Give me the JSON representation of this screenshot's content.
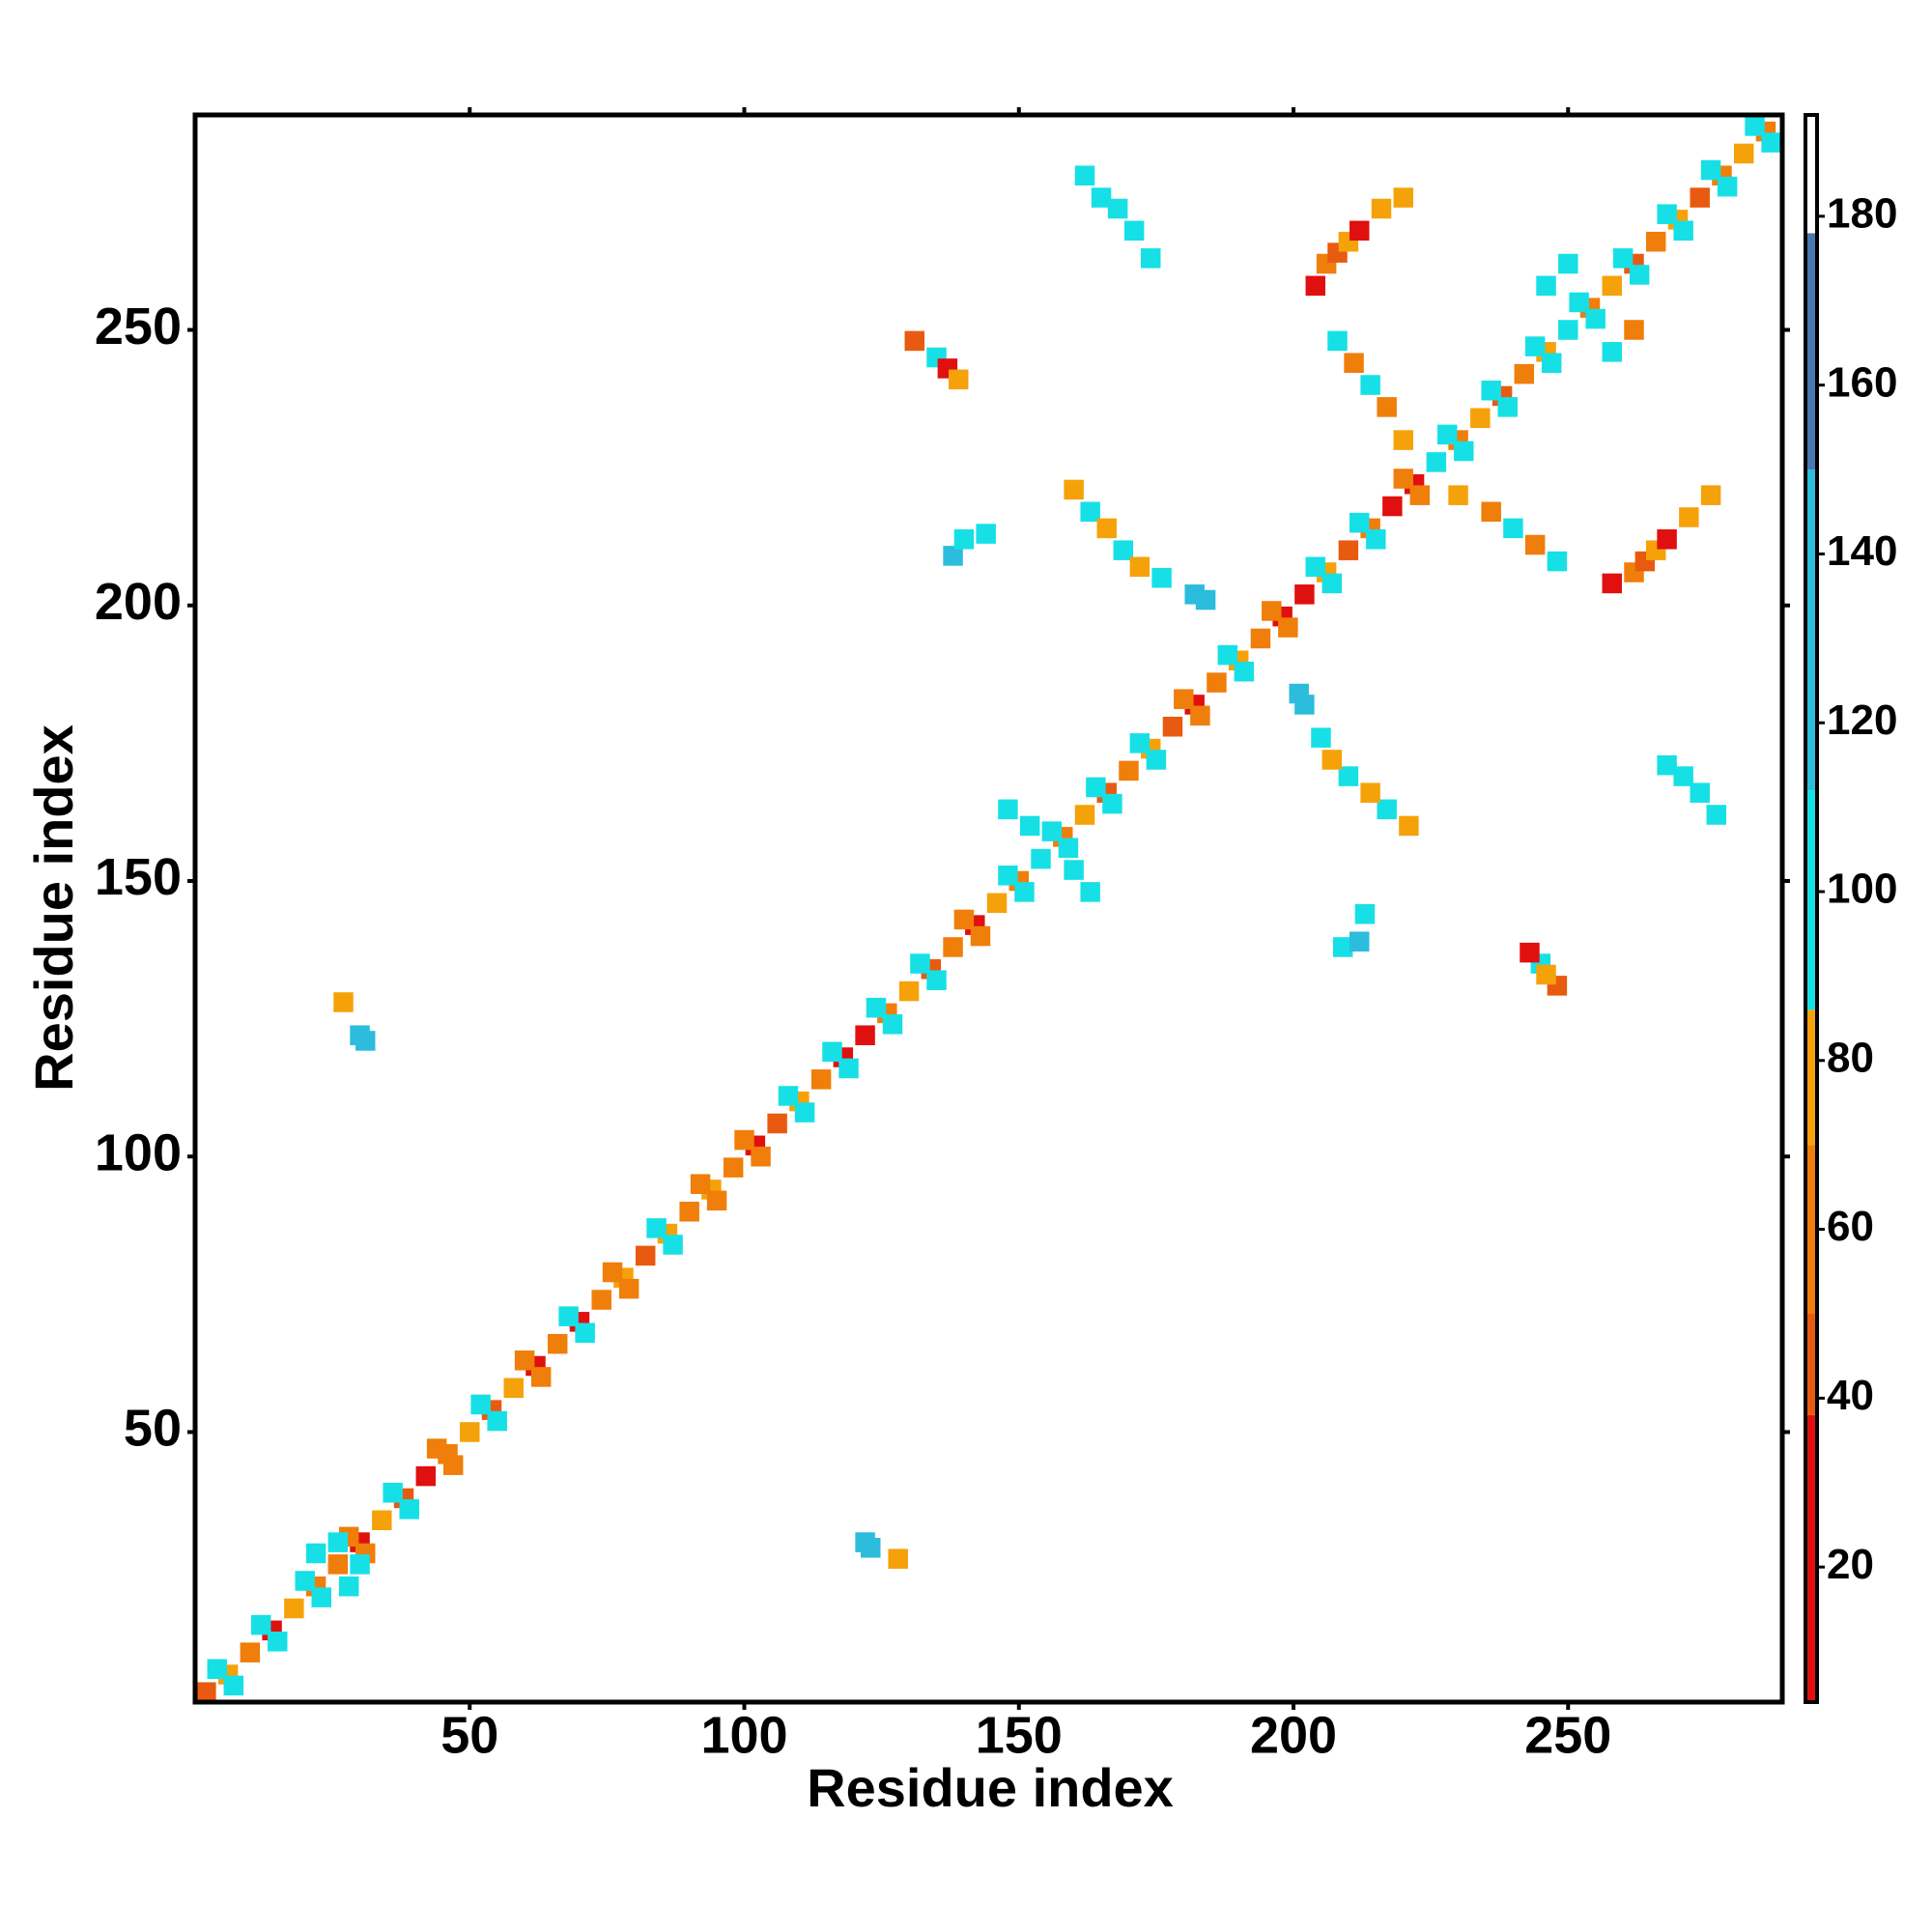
{
  "chart_data": {
    "type": "heatmap",
    "xlabel": "Residue index",
    "ylabel": "Residue index",
    "xlim": [
      0,
      289
    ],
    "ylim": [
      1,
      289
    ],
    "xticks": [
      50,
      100,
      150,
      200,
      250
    ],
    "yticks": [
      50,
      100,
      150,
      200,
      250
    ],
    "clim": [
      4,
      192
    ],
    "cticks": [
      20,
      40,
      60,
      80,
      100,
      120,
      140,
      160,
      180
    ],
    "colorscale": [
      {
        "from": 4,
        "to": 38,
        "color": "#e01010"
      },
      {
        "from": 38,
        "to": 50,
        "color": "#e85a10"
      },
      {
        "from": 50,
        "to": 70,
        "color": "#f07e0a"
      },
      {
        "from": 70,
        "to": 86,
        "color": "#f5a20a"
      },
      {
        "from": 86,
        "to": 112,
        "color": "#16e0e6"
      },
      {
        "from": 112,
        "to": 150,
        "color": "#2cbcdc"
      },
      {
        "from": 150,
        "to": 178,
        "color": "#4a78b0"
      },
      {
        "from": 178,
        "to": 192,
        "color": "#ffffff"
      }
    ],
    "cells": [
      [
        2,
        2,
        40
      ],
      [
        6,
        6,
        70
      ],
      [
        10,
        10,
        60
      ],
      [
        14,
        14,
        20
      ],
      [
        18,
        18,
        70
      ],
      [
        22,
        22,
        50
      ],
      [
        26,
        26,
        65
      ],
      [
        30,
        30,
        30
      ],
      [
        34,
        34,
        75
      ],
      [
        38,
        38,
        45
      ],
      [
        42,
        42,
        20
      ],
      [
        46,
        46,
        60
      ],
      [
        50,
        50,
        70
      ],
      [
        54,
        54,
        40
      ],
      [
        58,
        58,
        75
      ],
      [
        62,
        62,
        30
      ],
      [
        66,
        66,
        65
      ],
      [
        70,
        70,
        20
      ],
      [
        74,
        74,
        55
      ],
      [
        78,
        78,
        75
      ],
      [
        82,
        82,
        45
      ],
      [
        86,
        86,
        70
      ],
      [
        90,
        90,
        60
      ],
      [
        94,
        94,
        75
      ],
      [
        98,
        98,
        50
      ],
      [
        102,
        102,
        20
      ],
      [
        106,
        106,
        45
      ],
      [
        110,
        110,
        70
      ],
      [
        114,
        114,
        60
      ],
      [
        118,
        118,
        20
      ],
      [
        122,
        122,
        30
      ],
      [
        126,
        126,
        65
      ],
      [
        130,
        130,
        75
      ],
      [
        134,
        134,
        45
      ],
      [
        138,
        138,
        60
      ],
      [
        142,
        142,
        30
      ],
      [
        146,
        146,
        70
      ],
      [
        150,
        150,
        50
      ],
      [
        154,
        154,
        110
      ],
      [
        158,
        158,
        65
      ],
      [
        162,
        162,
        75
      ],
      [
        166,
        166,
        45
      ],
      [
        170,
        170,
        60
      ],
      [
        174,
        174,
        70
      ],
      [
        178,
        178,
        40
      ],
      [
        182,
        182,
        20
      ],
      [
        186,
        186,
        55
      ],
      [
        190,
        190,
        75
      ],
      [
        194,
        194,
        60
      ],
      [
        198,
        198,
        30
      ],
      [
        202,
        202,
        20
      ],
      [
        206,
        206,
        70
      ],
      [
        210,
        210,
        45
      ],
      [
        214,
        214,
        60
      ],
      [
        218,
        218,
        30
      ],
      [
        222,
        222,
        20
      ],
      [
        226,
        226,
        100
      ],
      [
        230,
        230,
        65
      ],
      [
        234,
        234,
        75
      ],
      [
        238,
        238,
        45
      ],
      [
        242,
        242,
        60
      ],
      [
        246,
        246,
        70
      ],
      [
        250,
        250,
        100
      ],
      [
        254,
        254,
        60
      ],
      [
        258,
        258,
        75
      ],
      [
        262,
        262,
        45
      ],
      [
        266,
        266,
        65
      ],
      [
        270,
        270,
        70
      ],
      [
        274,
        274,
        40
      ],
      [
        278,
        278,
        60
      ],
      [
        282,
        282,
        75
      ],
      [
        286,
        286,
        50
      ],
      [
        4,
        7,
        100
      ],
      [
        7,
        4,
        100
      ],
      [
        12,
        15,
        100
      ],
      [
        15,
        12,
        100
      ],
      [
        20,
        23,
        100
      ],
      [
        23,
        20,
        100
      ],
      [
        28,
        31,
        60
      ],
      [
        31,
        28,
        60
      ],
      [
        36,
        39,
        100
      ],
      [
        39,
        36,
        100
      ],
      [
        44,
        47,
        60
      ],
      [
        47,
        44,
        60
      ],
      [
        52,
        55,
        100
      ],
      [
        55,
        52,
        100
      ],
      [
        60,
        63,
        60
      ],
      [
        63,
        60,
        60
      ],
      [
        68,
        71,
        100
      ],
      [
        71,
        68,
        100
      ],
      [
        76,
        79,
        60
      ],
      [
        79,
        76,
        60
      ],
      [
        84,
        87,
        100
      ],
      [
        87,
        84,
        100
      ],
      [
        92,
        95,
        60
      ],
      [
        95,
        92,
        60
      ],
      [
        100,
        103,
        60
      ],
      [
        103,
        100,
        60
      ],
      [
        108,
        111,
        100
      ],
      [
        111,
        108,
        100
      ],
      [
        116,
        119,
        100
      ],
      [
        119,
        116,
        100
      ],
      [
        124,
        127,
        100
      ],
      [
        127,
        124,
        100
      ],
      [
        132,
        135,
        100
      ],
      [
        135,
        132,
        100
      ],
      [
        140,
        143,
        60
      ],
      [
        143,
        140,
        60
      ],
      [
        148,
        151,
        100
      ],
      [
        151,
        148,
        100
      ],
      [
        156,
        159,
        100
      ],
      [
        159,
        156,
        100
      ],
      [
        164,
        167,
        100
      ],
      [
        167,
        164,
        100
      ],
      [
        172,
        175,
        100
      ],
      [
        175,
        172,
        100
      ],
      [
        180,
        183,
        60
      ],
      [
        183,
        180,
        60
      ],
      [
        188,
        191,
        100
      ],
      [
        191,
        188,
        100
      ],
      [
        196,
        199,
        60
      ],
      [
        199,
        196,
        60
      ],
      [
        204,
        207,
        100
      ],
      [
        207,
        204,
        100
      ],
      [
        212,
        215,
        100
      ],
      [
        215,
        212,
        100
      ],
      [
        220,
        223,
        60
      ],
      [
        223,
        220,
        60
      ],
      [
        228,
        231,
        100
      ],
      [
        231,
        228,
        100
      ],
      [
        236,
        239,
        100
      ],
      [
        239,
        236,
        100
      ],
      [
        244,
        247,
        100
      ],
      [
        247,
        244,
        100
      ],
      [
        252,
        255,
        100
      ],
      [
        255,
        252,
        100
      ],
      [
        260,
        263,
        100
      ],
      [
        263,
        260,
        100
      ],
      [
        268,
        271,
        100
      ],
      [
        271,
        268,
        100
      ],
      [
        276,
        279,
        100
      ],
      [
        279,
        276,
        100
      ],
      [
        284,
        287,
        100
      ],
      [
        287,
        284,
        100
      ],
      [
        30,
        122,
        130
      ],
      [
        31,
        121,
        130
      ],
      [
        122,
        30,
        130
      ],
      [
        123,
        29,
        130
      ],
      [
        128,
        27,
        70
      ],
      [
        27,
        128,
        70
      ],
      [
        22,
        28,
        100
      ],
      [
        28,
        22,
        100
      ],
      [
        26,
        30,
        100
      ],
      [
        30,
        26,
        100
      ],
      [
        131,
        248,
        40
      ],
      [
        135,
        245,
        100
      ],
      [
        137,
        243,
        20
      ],
      [
        139,
        241,
        70
      ],
      [
        245,
        135,
        100
      ],
      [
        248,
        131,
        40
      ],
      [
        243,
        137,
        20
      ],
      [
        246,
        133,
        70
      ],
      [
        209,
        138,
        100
      ],
      [
        212,
        139,
        130
      ],
      [
        213,
        144,
        100
      ],
      [
        138,
        209,
        130
      ],
      [
        140,
        212,
        100
      ],
      [
        144,
        213,
        100
      ],
      [
        160,
        221,
        70
      ],
      [
        163,
        217,
        100
      ],
      [
        166,
        214,
        70
      ],
      [
        169,
        210,
        100
      ],
      [
        172,
        207,
        70
      ],
      [
        176,
        205,
        100
      ],
      [
        182,
        202,
        130
      ],
      [
        184,
        201,
        130
      ],
      [
        221,
        160,
        70
      ],
      [
        217,
        163,
        100
      ],
      [
        214,
        166,
        70
      ],
      [
        210,
        169,
        100
      ],
      [
        207,
        172,
        70
      ],
      [
        205,
        176,
        100
      ],
      [
        202,
        182,
        130
      ],
      [
        201,
        184,
        130
      ],
      [
        162,
        278,
        100
      ],
      [
        165,
        274,
        100
      ],
      [
        168,
        272,
        100
      ],
      [
        171,
        268,
        100
      ],
      [
        174,
        263,
        100
      ],
      [
        268,
        171,
        100
      ],
      [
        271,
        169,
        100
      ],
      [
        274,
        166,
        100
      ],
      [
        277,
        162,
        100
      ],
      [
        204,
        258,
        20
      ],
      [
        206,
        262,
        60
      ],
      [
        208,
        264,
        40
      ],
      [
        210,
        266,
        70
      ],
      [
        212,
        268,
        20
      ],
      [
        216,
        272,
        70
      ],
      [
        220,
        274,
        70
      ],
      [
        258,
        204,
        20
      ],
      [
        262,
        206,
        60
      ],
      [
        264,
        208,
        40
      ],
      [
        266,
        210,
        70
      ],
      [
        268,
        212,
        20
      ],
      [
        272,
        216,
        70
      ],
      [
        276,
        220,
        70
      ],
      [
        208,
        248,
        100
      ],
      [
        211,
        244,
        60
      ],
      [
        214,
        240,
        100
      ],
      [
        217,
        236,
        60
      ],
      [
        220,
        230,
        70
      ],
      [
        230,
        220,
        70
      ],
      [
        236,
        217,
        60
      ],
      [
        240,
        214,
        100
      ],
      [
        244,
        211,
        60
      ],
      [
        248,
        208,
        100
      ],
      [
        246,
        258,
        100
      ],
      [
        258,
        246,
        100
      ],
      [
        250,
        262,
        100
      ],
      [
        262,
        250,
        60
      ],
      [
        152,
        160,
        100
      ],
      [
        160,
        152,
        100
      ],
      [
        148,
        163,
        100
      ],
      [
        163,
        148,
        100
      ]
    ]
  }
}
